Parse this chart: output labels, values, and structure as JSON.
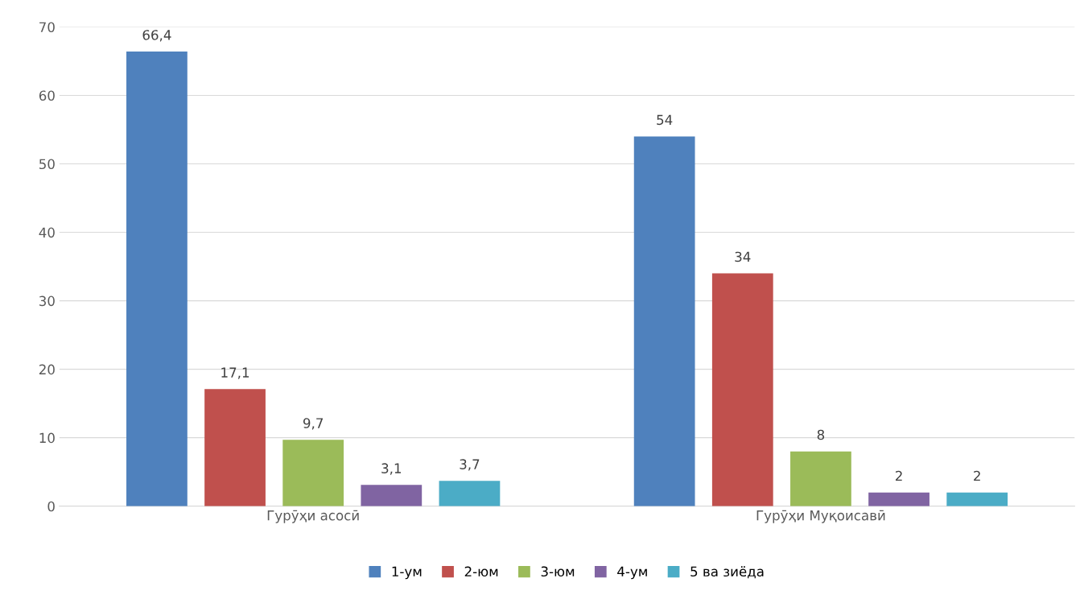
{
  "chart_data": {
    "type": "bar",
    "categories": [
      "Гурӯҳи асосӣ",
      "Гурӯҳи Муқоисавӣ"
    ],
    "series": [
      {
        "name": "1-ум",
        "color": "#4f81bd",
        "values": [
          66.4,
          54
        ],
        "value_labels": [
          "66,4",
          "54"
        ]
      },
      {
        "name": "2-юм",
        "color": "#c0504d",
        "values": [
          17.1,
          34
        ],
        "value_labels": [
          "17,1",
          "34"
        ]
      },
      {
        "name": "3-юм",
        "color": "#9bbb59",
        "values": [
          9.7,
          8
        ],
        "value_labels": [
          "9,7",
          "8"
        ]
      },
      {
        "name": "4-ум",
        "color": "#8064a2",
        "values": [
          3.1,
          2
        ],
        "value_labels": [
          "3,1",
          "2"
        ]
      },
      {
        "name": "5 ва зиёда",
        "color": "#4bacc6",
        "values": [
          3.7,
          2
        ],
        "value_labels": [
          "3,7",
          "2"
        ]
      }
    ],
    "ylim": [
      0,
      70
    ],
    "yticks": [
      0,
      10,
      20,
      30,
      40,
      50,
      60,
      70
    ],
    "grid": "y",
    "legend": "bottom"
  }
}
